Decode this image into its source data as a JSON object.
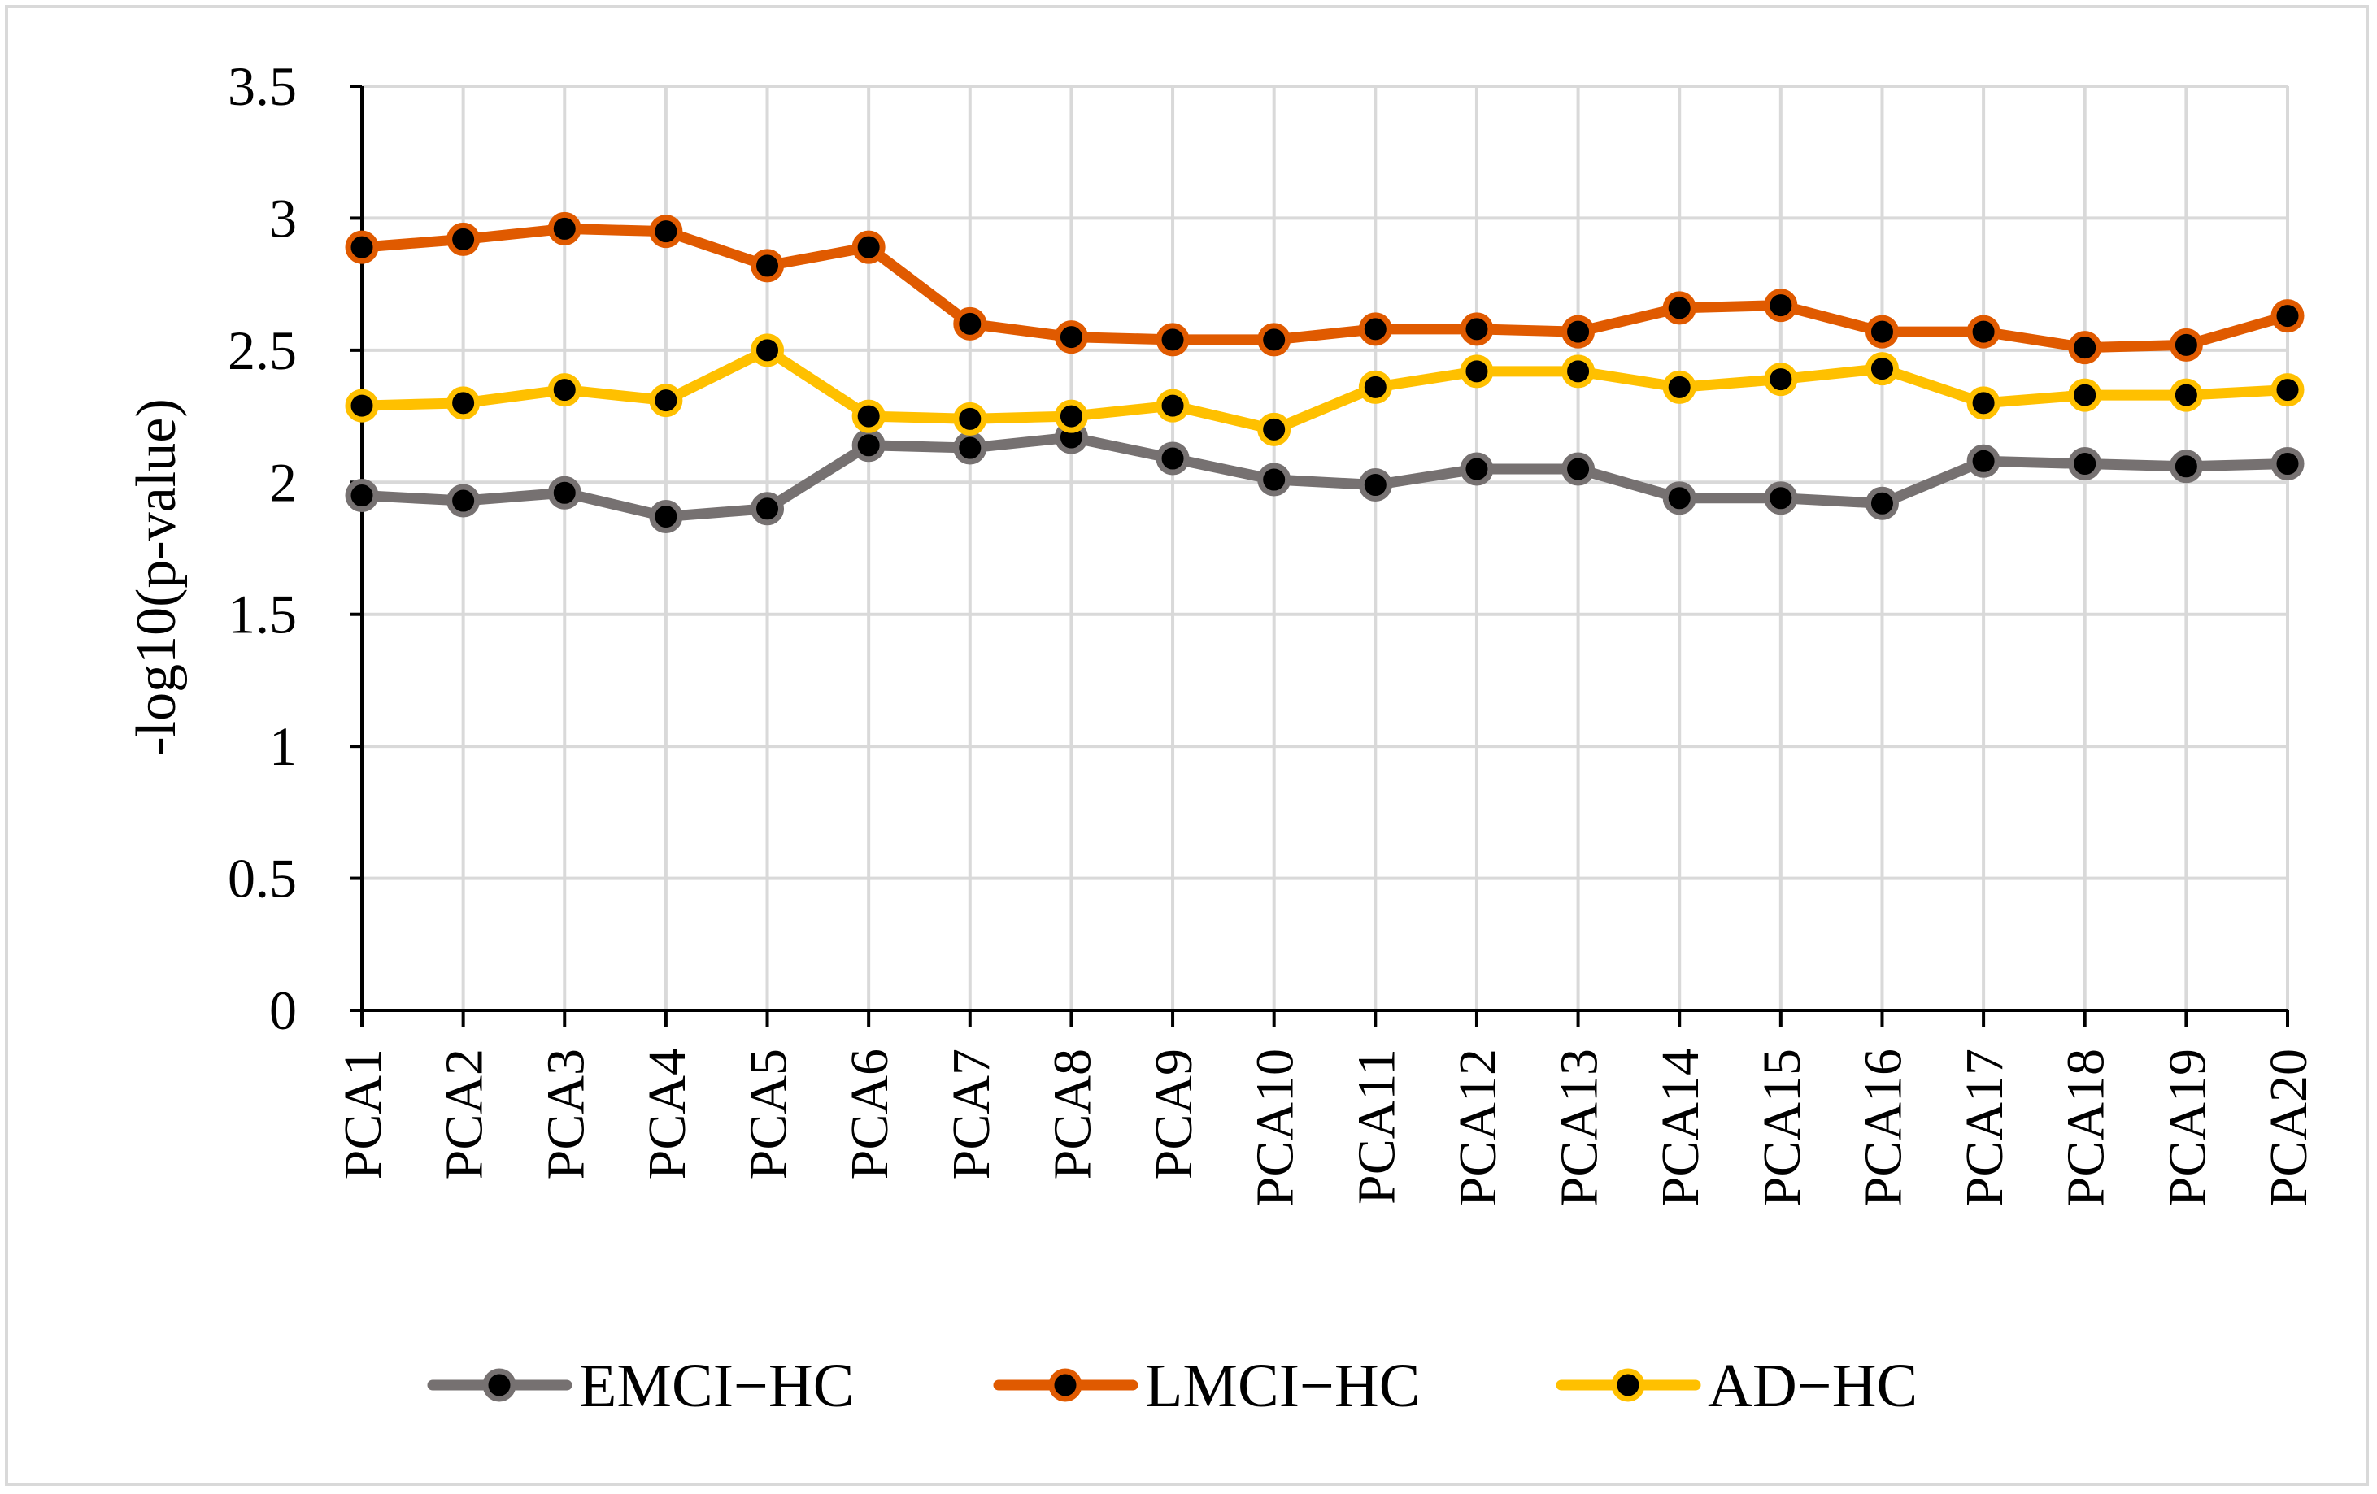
{
  "chart_data": {
    "type": "line",
    "title": "",
    "xlabel": "",
    "ylabel": "-log10(p-value)",
    "ylim": [
      0,
      3.5
    ],
    "yticks": [
      "0",
      "0.5",
      "1",
      "1.5",
      "2",
      "2.5",
      "3",
      "3.5"
    ],
    "grid": true,
    "legend_position": "bottom",
    "categories": [
      "PCA1",
      "PCA2",
      "PCA3",
      "PCA4",
      "PCA5",
      "PCA6",
      "PCA7",
      "PCA8",
      "PCA9",
      "PCA10",
      "PCA11",
      "PCA12",
      "PCA13",
      "PCA14",
      "PCA15",
      "PCA16",
      "PCA17",
      "PCA18",
      "PCA19",
      "PCA20"
    ],
    "series": [
      {
        "name": "EMCI−HC",
        "color": "#767171",
        "values": [
          1.95,
          1.93,
          1.96,
          1.87,
          1.9,
          2.14,
          2.13,
          2.17,
          2.09,
          2.01,
          1.99,
          2.05,
          2.05,
          1.94,
          1.94,
          1.92,
          2.08,
          2.07,
          2.06,
          2.07
        ]
      },
      {
        "name": "LMCI−HC",
        "color": "#e05a00",
        "values": [
          2.89,
          2.92,
          2.96,
          2.95,
          2.82,
          2.89,
          2.6,
          2.55,
          2.54,
          2.54,
          2.58,
          2.58,
          2.57,
          2.66,
          2.67,
          2.57,
          2.57,
          2.51,
          2.52,
          2.63
        ]
      },
      {
        "name": "AD−HC",
        "color": "#ffc000",
        "values": [
          2.29,
          2.3,
          2.35,
          2.31,
          2.5,
          2.25,
          2.24,
          2.25,
          2.29,
          2.2,
          2.36,
          2.42,
          2.42,
          2.36,
          2.39,
          2.43,
          2.3,
          2.33,
          2.33,
          2.35
        ]
      }
    ]
  }
}
